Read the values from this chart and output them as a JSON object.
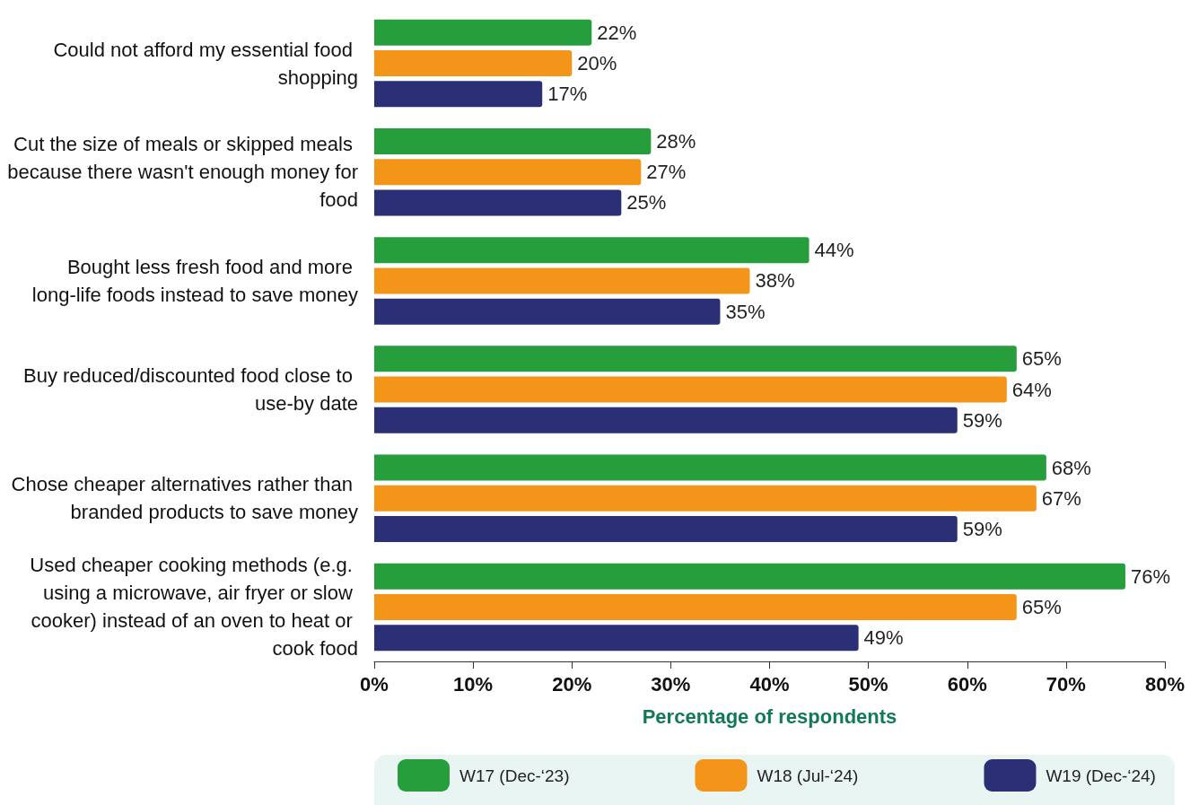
{
  "chart_data": {
    "type": "bar",
    "orientation": "horizontal",
    "xlabel": "Percentage of respondents",
    "categories": [
      "Could not afford my essential food shopping",
      "Cut the size of meals or skipped meals because there wasn't enough money for food",
      "Bought less fresh food and more long-life foods instead to save money",
      "Buy reduced/discounted food close to use-by date",
      "Chose cheaper alternatives rather than branded products to save money",
      "Used cheaper cooking methods (e.g. using a microwave, air fryer or slow cooker) instead of an oven to heat or cook food"
    ],
    "series": [
      {
        "name": "W17 (Dec-‘23)",
        "color": "#279e3c",
        "values": [
          22,
          28,
          44,
          65,
          68,
          76
        ],
        "value_labels": [
          "22%",
          "28%",
          "44%",
          "65%",
          "68%",
          "76%"
        ]
      },
      {
        "name": "W18 (Jul-‘24)",
        "color": "#f39519",
        "values": [
          20,
          27,
          38,
          64,
          67,
          65
        ],
        "value_labels": [
          "20%",
          "27%",
          "38%",
          "64%",
          "67%",
          "65%"
        ]
      },
      {
        "name": "W19 (Dec-‘24)",
        "color": "#2b2f75",
        "values": [
          17,
          25,
          35,
          59,
          59,
          49
        ],
        "value_labels": [
          "17%",
          "25%",
          "35%",
          "59%",
          "59%",
          "49%"
        ]
      }
    ],
    "xlim": [
      0,
      80
    ],
    "xticks": [
      {
        "value": 0,
        "label": "0%"
      },
      {
        "value": 10,
        "label": "10%"
      },
      {
        "value": 20,
        "label": "20%"
      },
      {
        "value": 30,
        "label": "30%"
      },
      {
        "value": 40,
        "label": "40%"
      },
      {
        "value": 50,
        "label": "50%"
      },
      {
        "value": 60,
        "label": "60%"
      },
      {
        "value": 70,
        "label": "70%"
      },
      {
        "value": 80,
        "label": "80%"
      }
    ],
    "grid": false,
    "legend": "bottom"
  }
}
